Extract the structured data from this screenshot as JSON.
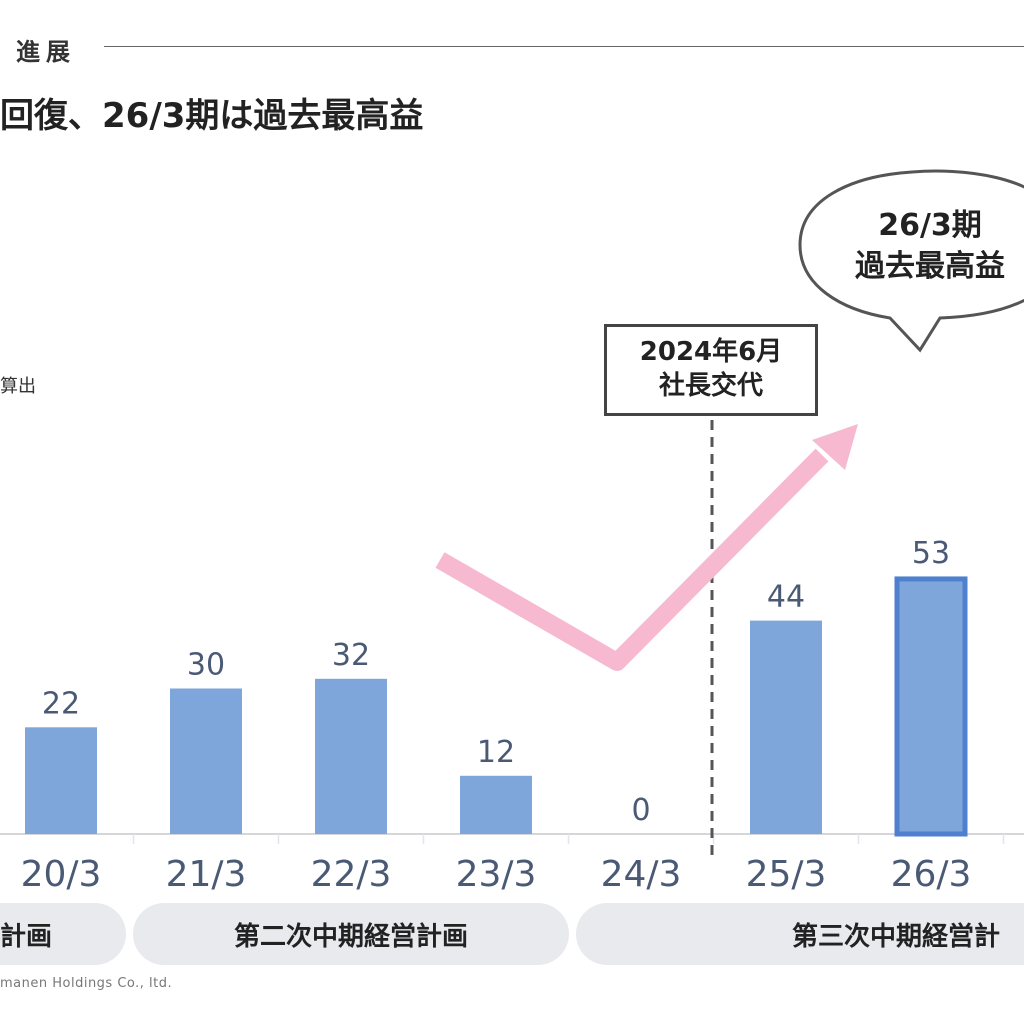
{
  "header": {
    "section_label": "進展",
    "headline": "回復、26/3期は過去最高益"
  },
  "unit_note": "算出",
  "callouts": {
    "ceo_change": {
      "line1": "2024年6月",
      "line2": "社長交代"
    },
    "record_bubble": {
      "line1": "26/3期",
      "line2": "過去最高益"
    }
  },
  "plans": [
    {
      "label": "計画"
    },
    {
      "label": "第二次中期経営計画"
    },
    {
      "label": "第三次中期経営計"
    }
  ],
  "footer": {
    "copyright": "manen Holdings Co., ltd."
  },
  "colors": {
    "bar_fill": "#7fa6db",
    "bar_highlight_border": "#4f7fcf",
    "trend_arrow": "#f7b9cf",
    "label_text": "#4a5a75"
  },
  "chart_data": {
    "type": "bar",
    "categories": [
      "20/3",
      "21/3",
      "22/3",
      "23/3",
      "24/3",
      "25/3",
      "26/3"
    ],
    "values": [
      22,
      30,
      32,
      12,
      0,
      44,
      53
    ],
    "data_labels": [
      "22",
      "30",
      "32",
      "12",
      "0",
      "44",
      "53"
    ],
    "highlight_category": "26/3",
    "ylim": [
      0,
      60
    ],
    "grid": false,
    "title": "",
    "xlabel": "",
    "ylabel": ""
  }
}
